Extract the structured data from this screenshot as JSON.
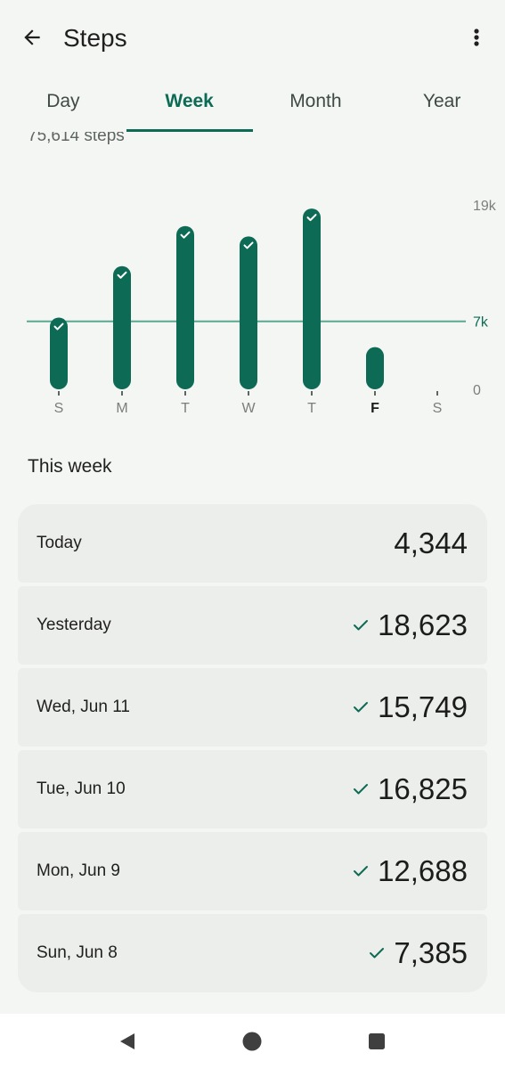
{
  "header": {
    "title": "Steps",
    "back_icon": "arrow-back-icon",
    "menu_icon": "more-vert-icon"
  },
  "tabs": [
    {
      "label": "Day",
      "active": false
    },
    {
      "label": "Week",
      "active": true
    },
    {
      "label": "Month",
      "active": false
    },
    {
      "label": "Year",
      "active": false
    }
  ],
  "summary": {
    "partial_text": "75,614 steps"
  },
  "chart_data": {
    "type": "bar",
    "categories": [
      "S",
      "M",
      "T",
      "W",
      "T",
      "F",
      "S"
    ],
    "values": [
      7385,
      12688,
      16825,
      15749,
      18623,
      4344,
      0
    ],
    "goal_met": [
      true,
      true,
      true,
      true,
      true,
      false,
      false
    ],
    "highlighted_index": 5,
    "goal_line": 7000,
    "y_tick_labels": [
      "19k",
      "7k",
      "0"
    ],
    "ylim": [
      0,
      19000
    ],
    "colors": {
      "bar": "#0d6b55",
      "goal_line": "#5aa891",
      "axis_text": "#7a7f7b"
    }
  },
  "week_list": {
    "title": "This week",
    "rows": [
      {
        "label": "Today",
        "value": "4,344",
        "goal_met": false
      },
      {
        "label": "Yesterday",
        "value": "18,623",
        "goal_met": true
      },
      {
        "label": "Wed, Jun 11",
        "value": "15,749",
        "goal_met": true
      },
      {
        "label": "Tue, Jun 10",
        "value": "16,825",
        "goal_met": true
      },
      {
        "label": "Mon, Jun 9",
        "value": "12,688",
        "goal_met": true
      },
      {
        "label": "Sun, Jun 8",
        "value": "7,385",
        "goal_met": true
      }
    ]
  },
  "navbar": {
    "back_icon": "nav-back-icon",
    "home_icon": "nav-home-icon",
    "recents_icon": "nav-recents-icon"
  },
  "colors": {
    "accent": "#0d6b55",
    "background": "#f4f6f3",
    "card": "#eceeeb"
  }
}
